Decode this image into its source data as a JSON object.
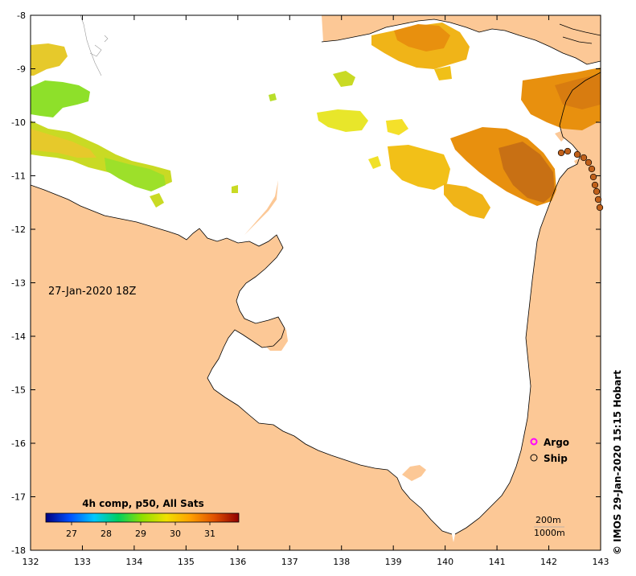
{
  "map": {
    "timestamp": "27-Jan-2020 18Z",
    "product": "4h comp, p50, All Sats",
    "x_ticks": [
      "132",
      "133",
      "134",
      "135",
      "136",
      "137",
      "138",
      "139",
      "140",
      "141",
      "142",
      "143"
    ],
    "y_ticks": [
      "-8",
      "-9",
      "-10",
      "-11",
      "-12",
      "-13",
      "-14",
      "-15",
      "-16",
      "-17",
      "-18"
    ],
    "colorbar_ticks": [
      "27",
      "28",
      "29",
      "30",
      "31"
    ],
    "colorbar_stops": [
      "#000080",
      "#0050ff",
      "#00c8ff",
      "#00d060",
      "#90e000",
      "#f0e000",
      "#ffa000",
      "#e05000",
      "#900000"
    ],
    "legend": {
      "argo": "Argo",
      "ship": "Ship"
    },
    "depth_contours": [
      "200m",
      "1000m"
    ],
    "credit": "© IMOS 29-Jan-2020 15:15 Hobart",
    "colors": {
      "land": "#fcc896",
      "argo": "#ff00ff",
      "ship_fill": "#c0601a"
    }
  }
}
